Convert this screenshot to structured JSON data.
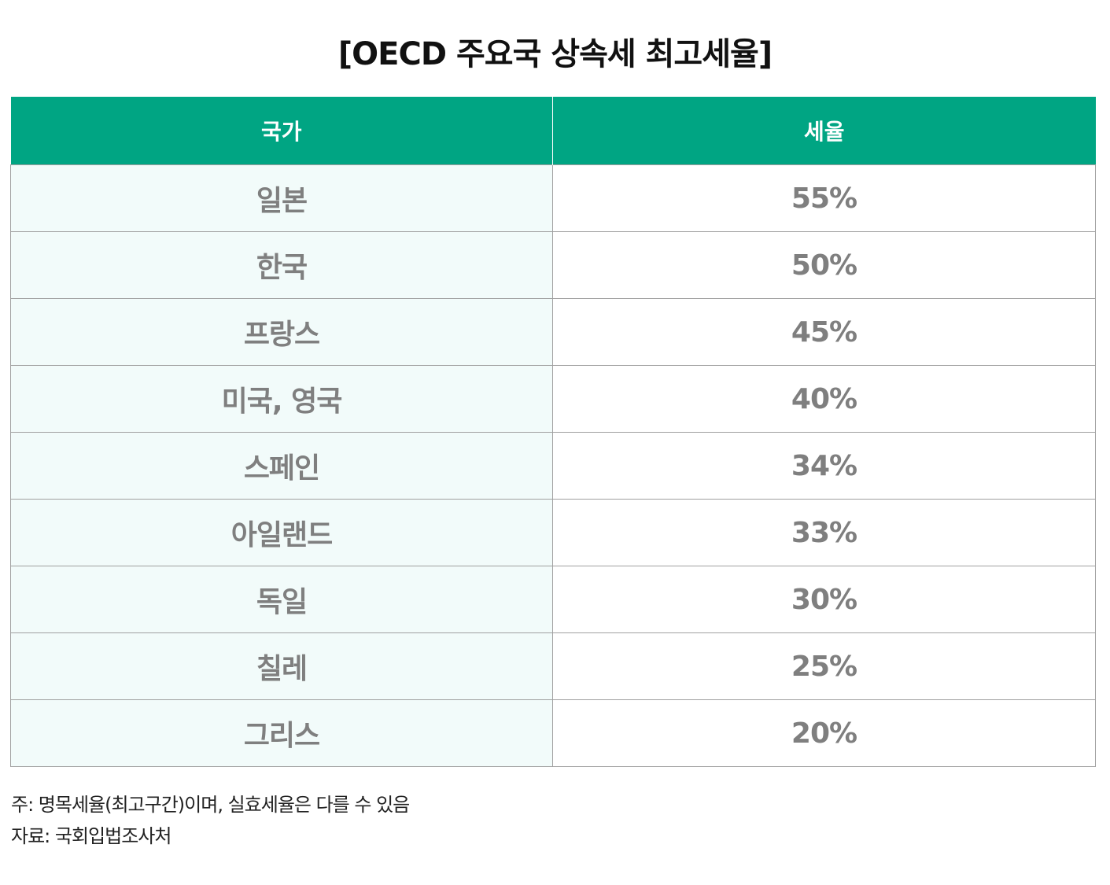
{
  "title": "[OECD 주요국 상속세 최고세율]",
  "chart_data": {
    "type": "table",
    "title": "[OECD 주요국 상속세 최고세율]",
    "columns": [
      "국가",
      "세율"
    ],
    "rows": [
      {
        "country": "일본",
        "rate": "55%"
      },
      {
        "country": "한국",
        "rate": "50%"
      },
      {
        "country": "프랑스",
        "rate": "45%"
      },
      {
        "country": "미국, 영국",
        "rate": "40%"
      },
      {
        "country": "스페인",
        "rate": "34%"
      },
      {
        "country": "아일랜드",
        "rate": "33%"
      },
      {
        "country": "독일",
        "rate": "30%"
      },
      {
        "country": "칠레",
        "rate": "25%"
      },
      {
        "country": "그리스",
        "rate": "20%"
      }
    ]
  },
  "colors": {
    "header_bg": "#00a583",
    "country_cell_bg": "#f2fbfa",
    "value_text": "#7f7f7f"
  },
  "notes": {
    "note": "주: 명목세율(최고구간)이며, 실효세율은 다를 수 있음",
    "source": "자료: 국회입법조사처"
  }
}
